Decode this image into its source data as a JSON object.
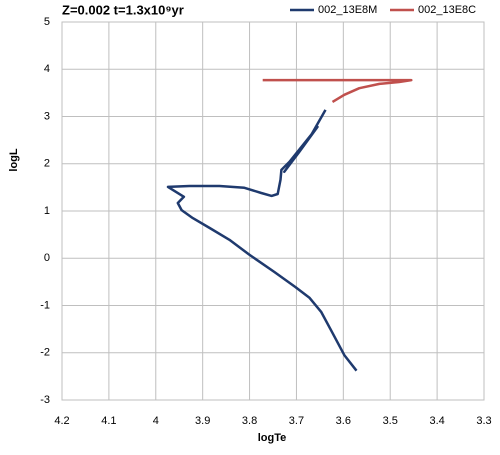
{
  "chart_data": {
    "type": "line",
    "title": "Z=0.002  t=1.3x10⁹yr",
    "x_label": "logTe",
    "y_label": "logL",
    "xlim": [
      4.2,
      3.3
    ],
    "xticks": [
      4.2,
      4.1,
      4,
      3.9,
      3.8,
      3.7,
      3.6,
      3.5,
      3.4,
      3.3
    ],
    "ylim": [
      -3,
      5
    ],
    "yticks": [
      -3,
      -2,
      -1,
      0,
      1,
      2,
      3,
      4,
      5
    ],
    "grid": true,
    "legend": "top-right",
    "series": [
      {
        "name": "002_13E8M",
        "color": "#1f3a6e",
        "x": [
          3.572,
          3.598,
          3.623,
          3.647,
          3.672,
          3.702,
          3.747,
          3.8,
          3.843,
          3.885,
          3.921,
          3.945,
          3.953,
          3.94,
          3.974,
          3.928,
          3.864,
          3.811,
          3.775,
          3.753,
          3.74,
          3.734,
          3.732,
          3.715,
          3.655,
          3.694,
          3.726,
          3.711,
          3.672,
          3.638
        ],
        "values": [
          -2.38,
          -2.05,
          -1.58,
          -1.14,
          -0.84,
          -0.61,
          -0.29,
          0.07,
          0.39,
          0.64,
          0.85,
          1.02,
          1.17,
          1.3,
          1.51,
          1.53,
          1.53,
          1.49,
          1.38,
          1.32,
          1.36,
          1.66,
          1.87,
          2.04,
          2.78,
          2.25,
          1.83,
          2.04,
          2.55,
          3.14
        ]
      },
      {
        "name": "002_13E8C",
        "color": "#c0504d",
        "x": [
          3.623,
          3.598,
          3.566,
          3.523,
          3.481,
          3.455,
          3.772
        ],
        "values": [
          3.31,
          3.46,
          3.6,
          3.69,
          3.73,
          3.77,
          3.77
        ]
      }
    ]
  }
}
